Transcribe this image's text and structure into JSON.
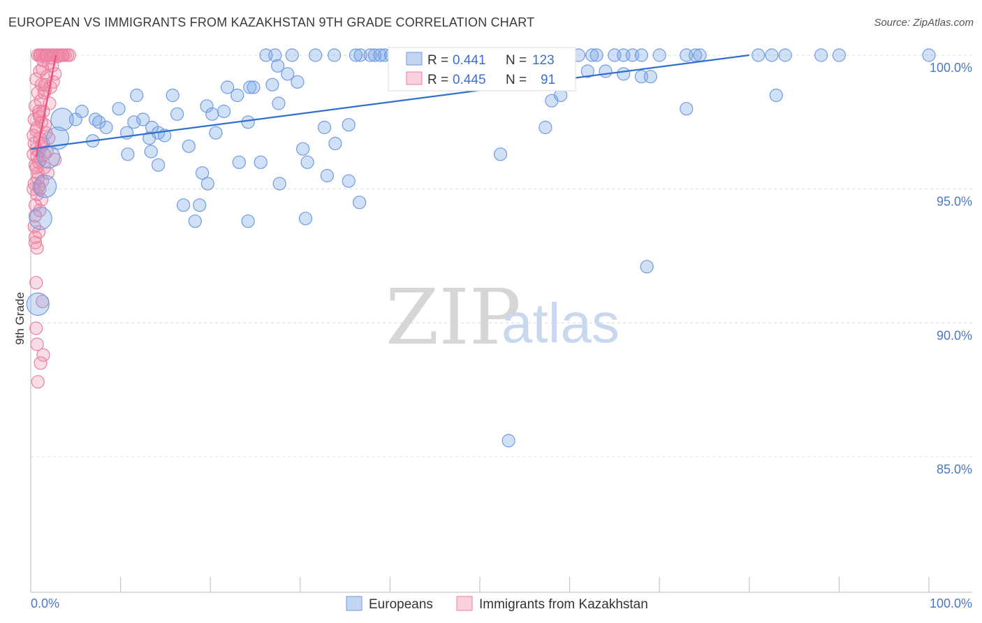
{
  "title": "EUROPEAN VS IMMIGRANTS FROM KAZAKHSTAN 9TH GRADE CORRELATION CHART",
  "source": "Source: ZipAtlas.com",
  "watermark": {
    "zip": "ZIP",
    "atlas": "atlas"
  },
  "colors": {
    "blue_fill": "rgba(120,165,230,0.35)",
    "blue_stroke": "#6f9be0",
    "blue_line": "#2f6fcf",
    "pink_fill": "rgba(240,140,170,0.30)",
    "pink_stroke": "#ec7ea0",
    "pink_line": "#ea4f80",
    "grid": "#dcdcdc",
    "tick_label": "#4a78c4"
  },
  "legend": {
    "rows": [
      {
        "r_label": "R = ",
        "r_value": "0.441",
        "n_label": "N = ",
        "n_value": "123"
      },
      {
        "r_label": "R = ",
        "r_value": "0.445",
        "n_label": "N = ",
        "n_value": "91"
      }
    ]
  },
  "chart_data": {
    "type": "scatter",
    "title": "EUROPEAN VS IMMIGRANTS FROM KAZAKHSTAN 9TH GRADE CORRELATION CHART",
    "xlabel": "",
    "ylabel": "9th Grade",
    "xlim": [
      0,
      100
    ],
    "ylim": [
      80.5,
      100.5
    ],
    "x_tick_labels": [
      "0.0%",
      "100.0%"
    ],
    "y_ticks": [
      {
        "value": 100,
        "label": "100.0%"
      },
      {
        "value": 95,
        "label": "95.0%"
      },
      {
        "value": 90,
        "label": "90.0%"
      },
      {
        "value": 85,
        "label": "85.0%"
      }
    ],
    "series": [
      {
        "name": "Europeans",
        "color": "blue",
        "r": 0.441,
        "n": 123,
        "trend": {
          "x0": 0,
          "y0": 96.5,
          "x1": 80,
          "y1": 100
        },
        "points": [
          [
            26.2,
            100,
            1
          ],
          [
            27.2,
            100,
            1
          ],
          [
            29.1,
            100,
            1
          ],
          [
            31.7,
            100,
            1
          ],
          [
            33.8,
            100,
            1
          ],
          [
            36.2,
            100,
            1
          ],
          [
            36.7,
            100,
            1
          ],
          [
            37.8,
            100,
            1
          ],
          [
            38.3,
            100,
            1
          ],
          [
            38.9,
            100,
            1
          ],
          [
            39.4,
            100,
            1
          ],
          [
            40.1,
            100,
            1
          ],
          [
            40.8,
            100,
            1
          ],
          [
            42.0,
            100,
            1
          ],
          [
            42.5,
            100,
            1
          ],
          [
            43.0,
            100,
            1
          ],
          [
            44.0,
            100,
            1
          ],
          [
            46.0,
            100,
            1
          ],
          [
            48.0,
            100,
            1
          ],
          [
            50.2,
            100,
            1
          ],
          [
            51.5,
            100,
            1
          ],
          [
            52.8,
            100,
            1
          ],
          [
            53.5,
            100,
            1
          ],
          [
            56.0,
            100,
            1
          ],
          [
            58.0,
            100,
            1
          ],
          [
            61.0,
            100,
            1
          ],
          [
            62.5,
            100,
            1
          ],
          [
            63.0,
            100,
            1
          ],
          [
            65.0,
            100,
            1
          ],
          [
            66.0,
            100,
            1
          ],
          [
            67.0,
            100,
            1
          ],
          [
            68.0,
            100,
            1
          ],
          [
            70.0,
            100,
            1
          ],
          [
            73.0,
            100,
            1
          ],
          [
            74.0,
            100,
            1
          ],
          [
            74.5,
            100,
            1
          ],
          [
            81.0,
            100,
            1
          ],
          [
            82.5,
            100,
            1
          ],
          [
            84.0,
            100,
            1
          ],
          [
            88.0,
            100,
            1
          ],
          [
            90.0,
            100,
            1
          ],
          [
            100.0,
            100,
            1
          ],
          [
            27.5,
            99.6,
            1
          ],
          [
            28.6,
            99.3,
            1
          ],
          [
            29.7,
            99.0,
            1
          ],
          [
            26.9,
            98.9,
            1
          ],
          [
            21.9,
            98.8,
            1
          ],
          [
            24.4,
            98.8,
            1
          ],
          [
            24.8,
            98.8,
            1
          ],
          [
            23.0,
            98.5,
            1
          ],
          [
            11.8,
            98.5,
            1
          ],
          [
            15.8,
            98.5,
            1
          ],
          [
            59.0,
            98.5,
            1
          ],
          [
            68.0,
            99.2,
            1
          ],
          [
            69.0,
            99.2,
            1
          ],
          [
            66.0,
            99.3,
            1
          ],
          [
            64.0,
            99.4,
            1
          ],
          [
            62.0,
            99.4,
            1
          ],
          [
            9.8,
            98.0,
            1
          ],
          [
            19.6,
            98.1,
            1
          ],
          [
            21.5,
            97.9,
            1
          ],
          [
            27.6,
            98.2,
            1
          ],
          [
            58.0,
            98.3,
            1
          ],
          [
            73.0,
            98.0,
            1
          ],
          [
            83.0,
            98.5,
            1
          ],
          [
            3.5,
            97.6,
            2
          ],
          [
            5.0,
            97.6,
            1
          ],
          [
            5.7,
            97.9,
            1
          ],
          [
            7.2,
            97.6,
            1
          ],
          [
            7.6,
            97.5,
            1
          ],
          [
            8.4,
            97.3,
            1
          ],
          [
            10.7,
            97.1,
            1
          ],
          [
            11.5,
            97.5,
            1
          ],
          [
            12.5,
            97.6,
            1
          ],
          [
            13.5,
            97.3,
            1
          ],
          [
            14.2,
            97.1,
            1
          ],
          [
            14.9,
            97.0,
            1
          ],
          [
            16.3,
            97.8,
            1
          ],
          [
            20.2,
            97.8,
            1
          ],
          [
            20.6,
            97.1,
            1
          ],
          [
            24.2,
            97.5,
            1
          ],
          [
            32.7,
            97.3,
            1
          ],
          [
            35.4,
            97.4,
            1
          ],
          [
            57.3,
            97.3,
            1
          ],
          [
            3.0,
            96.9,
            2
          ],
          [
            2.0,
            96.2,
            2
          ],
          [
            1.6,
            95.1,
            2
          ],
          [
            1.1,
            93.9,
            2
          ],
          [
            0.8,
            90.7,
            2
          ],
          [
            6.9,
            96.8,
            1
          ],
          [
            10.8,
            96.3,
            1
          ],
          [
            13.2,
            96.9,
            1
          ],
          [
            13.4,
            96.4,
            1
          ],
          [
            14.2,
            95.9,
            1
          ],
          [
            17.6,
            96.6,
            1
          ],
          [
            23.2,
            96.0,
            1
          ],
          [
            25.6,
            96.0,
            1
          ],
          [
            30.3,
            96.5,
            1
          ],
          [
            30.8,
            96.0,
            1
          ],
          [
            33.9,
            96.7,
            1
          ],
          [
            52.3,
            96.3,
            1
          ],
          [
            19.1,
            95.6,
            1
          ],
          [
            19.7,
            95.2,
            1
          ],
          [
            33.0,
            95.5,
            1
          ],
          [
            35.4,
            95.3,
            1
          ],
          [
            27.7,
            95.2,
            1
          ],
          [
            17.0,
            94.4,
            1
          ],
          [
            18.8,
            94.4,
            1
          ],
          [
            36.6,
            94.5,
            1
          ],
          [
            30.6,
            93.9,
            1
          ],
          [
            18.3,
            93.8,
            1
          ],
          [
            24.2,
            93.8,
            1
          ],
          [
            68.6,
            92.1,
            1
          ],
          [
            53.2,
            85.6,
            1
          ]
        ]
      },
      {
        "name": "Immigrants from Kazakhstan",
        "color": "pink",
        "r": 0.445,
        "n": 91,
        "trend": {
          "x0": 0.6,
          "y0": 96.2,
          "x1": 2.8,
          "y1": 100
        },
        "points": [
          [
            0.8,
            100,
            1
          ],
          [
            1.0,
            100,
            1
          ],
          [
            1.1,
            100,
            1
          ],
          [
            1.3,
            100,
            1
          ],
          [
            1.5,
            100,
            1
          ],
          [
            1.7,
            100,
            1
          ],
          [
            2.1,
            100,
            1
          ],
          [
            2.4,
            100,
            1
          ],
          [
            2.6,
            100,
            1
          ],
          [
            2.9,
            100,
            1
          ],
          [
            3.1,
            100,
            1
          ],
          [
            3.3,
            100,
            1
          ],
          [
            3.6,
            100,
            1
          ],
          [
            3.8,
            100,
            1
          ],
          [
            4.1,
            100,
            1
          ],
          [
            4.3,
            100,
            1
          ],
          [
            1.4,
            99.8,
            1
          ],
          [
            2.0,
            99.7,
            1
          ],
          [
            2.4,
            99.6,
            1
          ],
          [
            1.0,
            99.4,
            1
          ],
          [
            1.8,
            99.2,
            1
          ],
          [
            2.7,
            99.3,
            1
          ],
          [
            0.6,
            99.1,
            1
          ],
          [
            1.2,
            98.9,
            1
          ],
          [
            1.6,
            98.7,
            1
          ],
          [
            2.2,
            98.8,
            1
          ],
          [
            0.8,
            98.6,
            1
          ],
          [
            1.1,
            98.3,
            1
          ],
          [
            0.5,
            98.1,
            1
          ],
          [
            1.4,
            97.9,
            1
          ],
          [
            0.9,
            97.8,
            1
          ],
          [
            0.4,
            97.6,
            1
          ],
          [
            1.2,
            97.5,
            1
          ],
          [
            0.7,
            97.3,
            1
          ],
          [
            1.7,
            97.1,
            1
          ],
          [
            0.3,
            97.0,
            1
          ],
          [
            1.0,
            96.9,
            1
          ],
          [
            1.4,
            96.7,
            1
          ],
          [
            0.6,
            96.5,
            1
          ],
          [
            0.9,
            96.4,
            1
          ],
          [
            1.8,
            96.4,
            1
          ],
          [
            0.3,
            96.3,
            1
          ],
          [
            1.1,
            96.1,
            1
          ],
          [
            2.7,
            96.1,
            1
          ],
          [
            0.5,
            95.9,
            1
          ],
          [
            1.5,
            95.8,
            1
          ],
          [
            0.8,
            95.6,
            1
          ],
          [
            1.3,
            95.3,
            1
          ],
          [
            0.4,
            95.2,
            1
          ],
          [
            0.9,
            95.1,
            1
          ],
          [
            0.7,
            94.8,
            1
          ],
          [
            1.2,
            94.6,
            1
          ],
          [
            0.5,
            94.4,
            1
          ],
          [
            1.0,
            94.2,
            1
          ],
          [
            0.4,
            93.6,
            1
          ],
          [
            0.9,
            93.4,
            1
          ],
          [
            0.5,
            93.2,
            1
          ],
          [
            0.7,
            92.8,
            1
          ],
          [
            0.6,
            91.5,
            1
          ],
          [
            1.3,
            90.8,
            1
          ],
          [
            0.6,
            89.8,
            1
          ],
          [
            0.7,
            89.2,
            1
          ],
          [
            1.4,
            88.8,
            1
          ],
          [
            1.1,
            88.5,
            1
          ],
          [
            0.8,
            87.8,
            1
          ],
          [
            2.0,
            96.9,
            1
          ],
          [
            0.6,
            97.2,
            1
          ],
          [
            1.6,
            98.9,
            1
          ],
          [
            2.3,
            99.9,
            1
          ],
          [
            3.0,
            99.95,
            1
          ],
          [
            0.4,
            96.7,
            1
          ],
          [
            1.5,
            96.3,
            1
          ],
          [
            0.8,
            95.4,
            1
          ],
          [
            1.0,
            97.7,
            1
          ],
          [
            2.1,
            98.2,
            1
          ],
          [
            0.5,
            94.0,
            1
          ],
          [
            1.9,
            95.6,
            1
          ],
          [
            0.3,
            95.0,
            1
          ],
          [
            1.2,
            96.6,
            1
          ],
          [
            0.7,
            96.2,
            1
          ],
          [
            1.3,
            99.5,
            1
          ],
          [
            0.9,
            97.9,
            1
          ],
          [
            1.6,
            97.4,
            1
          ],
          [
            0.6,
            95.8,
            1
          ],
          [
            2.5,
            99.0,
            1
          ],
          [
            1.8,
            100,
            1
          ],
          [
            3.5,
            100,
            1
          ],
          [
            1.0,
            95.0,
            1
          ],
          [
            0.5,
            93.0,
            1
          ],
          [
            1.5,
            98.6,
            1
          ],
          [
            0.9,
            96.0,
            1
          ]
        ]
      }
    ]
  },
  "bottom_legend": [
    {
      "label": "Europeans",
      "color": "blue"
    },
    {
      "label": "Immigrants from Kazakhstan",
      "color": "pink"
    }
  ]
}
